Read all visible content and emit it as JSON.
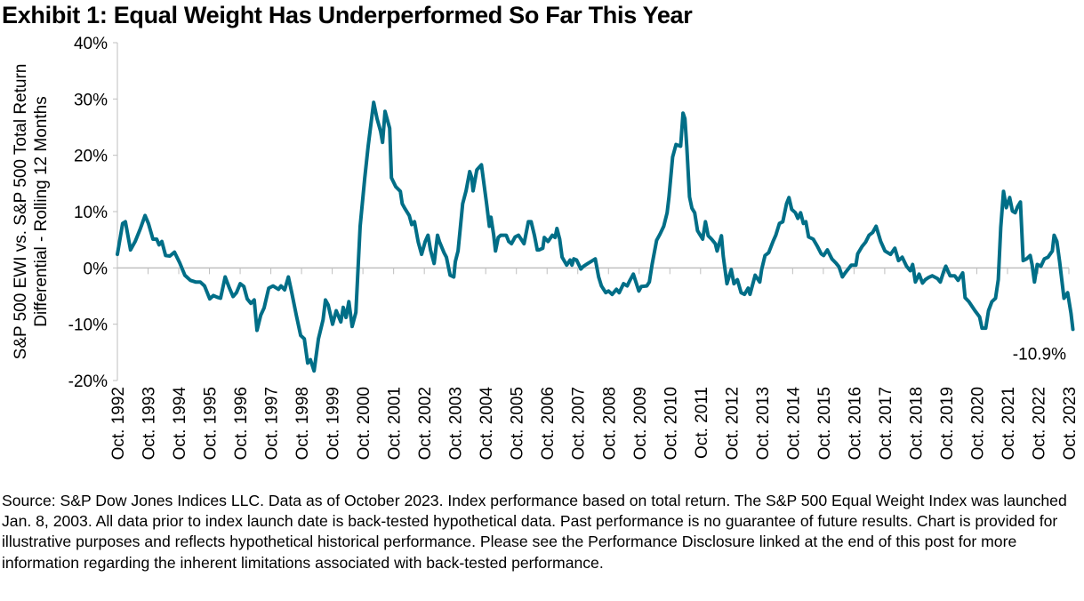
{
  "header": {
    "title": "Exhibit 1: Equal Weight Has Underperformed So Far This Year"
  },
  "footer": {
    "source": "Source: S&P Dow Jones Indices LLC. Data as of October 2023. Index performance based on total return.  The S&P 500 Equal Weight Index was launched Jan. 8, 2003. All data prior to index launch date is back-tested hypothetical data. Past performance is no guarantee of future results. Chart is provided for illustrative purposes and reflects hypothetical historical performance. Please see the Performance Disclosure linked at the end of this post for more information regarding the inherent limitations associated with back-tested performance."
  },
  "colors": {
    "line": "#006e87",
    "axis": "#bfbfbf"
  },
  "chart_data": {
    "type": "line",
    "title": "Exhibit 1: Equal Weight Has Underperformed So Far This Year",
    "ylabel_lines": [
      "S&P 500 EWI vs. S&P 500 Total Return",
      "Differential - Rolling 12 Months"
    ],
    "xlabel": "",
    "ylim": [
      -20,
      40
    ],
    "yticks": [
      40,
      30,
      20,
      10,
      0,
      -10,
      -20
    ],
    "ytick_labels": [
      "40%",
      "30%",
      "20%",
      "10%",
      "0%",
      "-10%",
      "-20%"
    ],
    "x_start_year": 1992.75,
    "xlim_years": [
      0,
      31
    ],
    "xtick_labels": [
      "Oct. 1992",
      "Oct. 1993",
      "Oct. 1994",
      "Oct. 1995",
      "Oct. 1996",
      "Oct. 1997",
      "Oct. 1998",
      "Oct. 1999",
      "Oct. 2000",
      "Oct. 2001",
      "Oct. 2002",
      "Oct. 2003",
      "Oct. 2004",
      "Oct. 2005",
      "Oct. 2006",
      "Oct. 2007",
      "Oct. 2008",
      "Oct. 2009",
      "Oct. 2010",
      "Oct. 2011",
      "Oct. 2012",
      "Oct. 2013",
      "Oct. 2014",
      "Oct. 2015",
      "Oct. 2016",
      "Oct. 2017",
      "Oct. 2018",
      "Oct. 2019",
      "Oct. 2020",
      "Oct. 2021",
      "Oct. 2022",
      "Oct. 2023"
    ],
    "grid": false,
    "legend": "none",
    "annotation": {
      "text": "-10.9%",
      "t": 31,
      "value": -10.9
    },
    "series": [
      {
        "name": "S&P 500 EWI vs. S&P 500 Total Return Differential - Rolling 12 Months",
        "points": [
          [
            0.0,
            2.4
          ],
          [
            0.17,
            7.9
          ],
          [
            0.26,
            8.2
          ],
          [
            0.43,
            3.2
          ],
          [
            0.58,
            4.7
          ],
          [
            0.75,
            7.0
          ],
          [
            0.9,
            9.3
          ],
          [
            1.01,
            7.9
          ],
          [
            1.16,
            5.1
          ],
          [
            1.28,
            5.1
          ],
          [
            1.36,
            4.1
          ],
          [
            1.45,
            4.7
          ],
          [
            1.57,
            2.2
          ],
          [
            1.71,
            2.1
          ],
          [
            1.86,
            2.8
          ],
          [
            2.03,
            0.9
          ],
          [
            2.2,
            -1.3
          ],
          [
            2.38,
            -2.2
          ],
          [
            2.55,
            -2.5
          ],
          [
            2.7,
            -2.5
          ],
          [
            2.84,
            -3.2
          ],
          [
            3.01,
            -5.5
          ],
          [
            3.13,
            -4.9
          ],
          [
            3.25,
            -5.2
          ],
          [
            3.36,
            -5.4
          ],
          [
            3.51,
            -1.6
          ],
          [
            3.65,
            -3.6
          ],
          [
            3.77,
            -5.1
          ],
          [
            3.88,
            -4.4
          ],
          [
            4.0,
            -2.8
          ],
          [
            4.12,
            -3.3
          ],
          [
            4.23,
            -5.5
          ],
          [
            4.35,
            -6.3
          ],
          [
            4.46,
            -5.7
          ],
          [
            4.55,
            -11.1
          ],
          [
            4.67,
            -8.4
          ],
          [
            4.78,
            -7.1
          ],
          [
            4.93,
            -3.6
          ],
          [
            5.07,
            -3.2
          ],
          [
            5.25,
            -3.8
          ],
          [
            5.33,
            -3.2
          ],
          [
            5.45,
            -3.9
          ],
          [
            5.57,
            -1.6
          ],
          [
            5.68,
            -4.4
          ],
          [
            5.83,
            -8.4
          ],
          [
            5.97,
            -12.0
          ],
          [
            6.09,
            -12.6
          ],
          [
            6.2,
            -16.9
          ],
          [
            6.29,
            -16.3
          ],
          [
            6.41,
            -18.3
          ],
          [
            6.55,
            -12.6
          ],
          [
            6.7,
            -9.2
          ],
          [
            6.78,
            -5.7
          ],
          [
            6.87,
            -6.6
          ],
          [
            7.01,
            -10.0
          ],
          [
            7.13,
            -7.6
          ],
          [
            7.28,
            -9.6
          ],
          [
            7.36,
            -7.0
          ],
          [
            7.45,
            -8.8
          ],
          [
            7.54,
            -6.0
          ],
          [
            7.65,
            -10.4
          ],
          [
            7.77,
            -7.9
          ],
          [
            7.91,
            7.4
          ],
          [
            8.06,
            16.0
          ],
          [
            8.17,
            21.6
          ],
          [
            8.35,
            29.4
          ],
          [
            8.46,
            26.5
          ],
          [
            8.58,
            24.2
          ],
          [
            8.64,
            22.3
          ],
          [
            8.72,
            27.8
          ],
          [
            8.87,
            24.8
          ],
          [
            8.93,
            16.0
          ],
          [
            9.07,
            14.4
          ],
          [
            9.22,
            13.6
          ],
          [
            9.28,
            11.4
          ],
          [
            9.36,
            10.6
          ],
          [
            9.51,
            9.3
          ],
          [
            9.59,
            7.7
          ],
          [
            9.68,
            8.2
          ],
          [
            9.8,
            4.6
          ],
          [
            9.91,
            2.4
          ],
          [
            10.03,
            4.7
          ],
          [
            10.12,
            5.8
          ],
          [
            10.2,
            3.2
          ],
          [
            10.32,
            0.8
          ],
          [
            10.43,
            5.8
          ],
          [
            10.49,
            4.7
          ],
          [
            10.64,
            2.7
          ],
          [
            10.72,
            1.9
          ],
          [
            10.84,
            -1.3
          ],
          [
            10.96,
            -1.6
          ],
          [
            11.01,
            1.1
          ],
          [
            11.1,
            3.0
          ],
          [
            11.25,
            11.4
          ],
          [
            11.36,
            13.7
          ],
          [
            11.48,
            17.1
          ],
          [
            11.54,
            16.1
          ],
          [
            11.59,
            13.7
          ],
          [
            11.71,
            17.4
          ],
          [
            11.86,
            18.3
          ],
          [
            12.03,
            11.4
          ],
          [
            12.12,
            7.4
          ],
          [
            12.17,
            9.0
          ],
          [
            12.26,
            5.8
          ],
          [
            12.32,
            3.0
          ],
          [
            12.41,
            5.4
          ],
          [
            12.49,
            5.8
          ],
          [
            12.67,
            5.8
          ],
          [
            12.75,
            4.7
          ],
          [
            12.84,
            4.3
          ],
          [
            12.96,
            5.5
          ],
          [
            13.07,
            5.8
          ],
          [
            13.25,
            4.3
          ],
          [
            13.39,
            8.2
          ],
          [
            13.48,
            8.2
          ],
          [
            13.59,
            5.7
          ],
          [
            13.68,
            3.2
          ],
          [
            13.74,
            3.2
          ],
          [
            13.86,
            3.5
          ],
          [
            13.91,
            5.4
          ],
          [
            14.03,
            4.7
          ],
          [
            14.17,
            5.8
          ],
          [
            14.26,
            5.4
          ],
          [
            14.32,
            7.0
          ],
          [
            14.41,
            5.1
          ],
          [
            14.49,
            1.9
          ],
          [
            14.64,
            0.5
          ],
          [
            14.75,
            1.4
          ],
          [
            14.81,
            0.5
          ],
          [
            14.87,
            1.6
          ],
          [
            14.96,
            1.4
          ],
          [
            15.1,
            -0.2
          ],
          [
            15.19,
            0.3
          ],
          [
            15.33,
            0.8
          ],
          [
            15.42,
            1.1
          ],
          [
            15.57,
            1.6
          ],
          [
            15.68,
            -1.6
          ],
          [
            15.77,
            -3.2
          ],
          [
            15.91,
            -4.4
          ],
          [
            16.0,
            -4.1
          ],
          [
            16.12,
            -4.7
          ],
          [
            16.26,
            -3.8
          ],
          [
            16.35,
            -4.4
          ],
          [
            16.49,
            -2.8
          ],
          [
            16.61,
            -3.2
          ],
          [
            16.7,
            -2.2
          ],
          [
            16.81,
            -1.1
          ],
          [
            16.99,
            -4.1
          ],
          [
            17.07,
            -3.3
          ],
          [
            17.25,
            -3.2
          ],
          [
            17.33,
            -2.5
          ],
          [
            17.42,
            0.6
          ],
          [
            17.57,
            4.9
          ],
          [
            17.68,
            6.0
          ],
          [
            17.8,
            7.4
          ],
          [
            17.91,
            9.8
          ],
          [
            17.97,
            12.6
          ],
          [
            18.09,
            19.7
          ],
          [
            18.2,
            21.9
          ],
          [
            18.35,
            21.6
          ],
          [
            18.43,
            27.5
          ],
          [
            18.49,
            26.5
          ],
          [
            18.55,
            21.6
          ],
          [
            18.64,
            12.6
          ],
          [
            18.72,
            10.6
          ],
          [
            18.81,
            9.8
          ],
          [
            18.9,
            6.6
          ],
          [
            18.99,
            5.8
          ],
          [
            19.07,
            5.1
          ],
          [
            19.16,
            8.2
          ],
          [
            19.25,
            5.7
          ],
          [
            19.36,
            5.1
          ],
          [
            19.48,
            4.3
          ],
          [
            19.54,
            3.0
          ],
          [
            19.68,
            5.7
          ],
          [
            19.74,
            2.1
          ],
          [
            19.86,
            -2.8
          ],
          [
            20.0,
            -0.3
          ],
          [
            20.09,
            -2.8
          ],
          [
            20.2,
            -2.1
          ],
          [
            20.32,
            -4.4
          ],
          [
            20.43,
            -4.7
          ],
          [
            20.55,
            -3.6
          ],
          [
            20.61,
            -4.7
          ],
          [
            20.78,
            -1.3
          ],
          [
            20.93,
            -2.5
          ],
          [
            20.99,
            -0.3
          ],
          [
            21.1,
            2.2
          ],
          [
            21.22,
            2.7
          ],
          [
            21.36,
            4.7
          ],
          [
            21.45,
            5.8
          ],
          [
            21.57,
            7.9
          ],
          [
            21.68,
            8.2
          ],
          [
            21.8,
            11.4
          ],
          [
            21.88,
            12.5
          ],
          [
            21.97,
            10.4
          ],
          [
            22.09,
            9.8
          ],
          [
            22.17,
            8.8
          ],
          [
            22.26,
            9.8
          ],
          [
            22.35,
            7.9
          ],
          [
            22.43,
            8.2
          ],
          [
            22.52,
            5.5
          ],
          [
            22.67,
            5.1
          ],
          [
            22.81,
            3.8
          ],
          [
            22.93,
            2.5
          ],
          [
            23.01,
            2.2
          ],
          [
            23.13,
            3.2
          ],
          [
            23.28,
            1.6
          ],
          [
            23.42,
            0.8
          ],
          [
            23.51,
            0.2
          ],
          [
            23.62,
            -1.6
          ],
          [
            23.71,
            -0.9
          ],
          [
            23.91,
            0.5
          ],
          [
            24.06,
            0.5
          ],
          [
            24.12,
            2.5
          ],
          [
            24.26,
            3.8
          ],
          [
            24.38,
            4.6
          ],
          [
            24.49,
            5.8
          ],
          [
            24.61,
            6.3
          ],
          [
            24.72,
            7.4
          ],
          [
            24.87,
            4.7
          ],
          [
            25.01,
            3.0
          ],
          [
            25.19,
            2.4
          ],
          [
            25.33,
            3.5
          ],
          [
            25.45,
            1.3
          ],
          [
            25.57,
            1.9
          ],
          [
            25.71,
            0.3
          ],
          [
            25.83,
            -0.5
          ],
          [
            25.91,
            0.6
          ],
          [
            26.0,
            -2.5
          ],
          [
            26.12,
            -1.1
          ],
          [
            26.23,
            -2.7
          ],
          [
            26.32,
            -2.1
          ],
          [
            26.43,
            -1.7
          ],
          [
            26.55,
            -1.4
          ],
          [
            26.72,
            -1.9
          ],
          [
            26.81,
            -2.5
          ],
          [
            26.93,
            -0.5
          ],
          [
            26.99,
            0.3
          ],
          [
            27.13,
            -1.4
          ],
          [
            27.28,
            -1.4
          ],
          [
            27.39,
            -2.2
          ],
          [
            27.54,
            -0.9
          ],
          [
            27.62,
            -5.3
          ],
          [
            27.74,
            -6.0
          ],
          [
            27.94,
            -7.6
          ],
          [
            28.09,
            -8.7
          ],
          [
            28.17,
            -10.7
          ],
          [
            28.29,
            -10.7
          ],
          [
            28.38,
            -7.6
          ],
          [
            28.49,
            -6.0
          ],
          [
            28.61,
            -5.4
          ],
          [
            28.7,
            -2.1
          ],
          [
            28.78,
            7.2
          ],
          [
            28.87,
            13.6
          ],
          [
            28.96,
            10.7
          ],
          [
            29.07,
            12.5
          ],
          [
            29.16,
            10.1
          ],
          [
            29.25,
            9.8
          ],
          [
            29.33,
            10.9
          ],
          [
            29.42,
            11.7
          ],
          [
            29.51,
            1.3
          ],
          [
            29.62,
            1.6
          ],
          [
            29.74,
            2.2
          ],
          [
            29.8,
            0.6
          ],
          [
            29.88,
            -2.5
          ],
          [
            29.97,
            0.6
          ],
          [
            30.09,
            0.3
          ],
          [
            30.2,
            1.6
          ],
          [
            30.32,
            1.9
          ],
          [
            30.46,
            3.0
          ],
          [
            30.52,
            5.8
          ],
          [
            30.61,
            4.7
          ],
          [
            30.7,
            1.1
          ],
          [
            30.84,
            -5.4
          ],
          [
            30.96,
            -4.4
          ],
          [
            31.07,
            -8.1
          ],
          [
            31.13,
            -10.9
          ]
        ]
      }
    ]
  }
}
